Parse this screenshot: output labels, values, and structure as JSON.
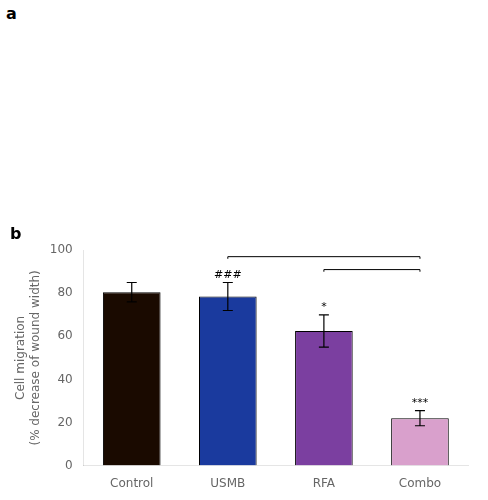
{
  "chart_data": {
    "type": "bar",
    "title": "b",
    "annotations": [
      "a"
    ],
    "categories": [
      "Control",
      "USMB",
      "RFA",
      "Combo"
    ],
    "values": [
      80.5,
      78.5,
      62.5,
      22.0
    ],
    "errors": [
      4.5,
      6.5,
      7.5,
      3.5
    ],
    "colors": [
      "#1a0a00",
      "#1a3a9e",
      "#7b3fa0",
      "#d9a0cc"
    ],
    "ylabel": "Cell migration\n(% decrease of wound width)",
    "ylim": [
      0,
      100
    ],
    "yticks": [
      0,
      20,
      40,
      60,
      80,
      100
    ],
    "significance": [
      null,
      "###",
      "*",
      "***"
    ],
    "brackets": [
      {
        "from": "USMB",
        "to": "Combo",
        "y": 96,
        "top": 97
      },
      {
        "from": "RFA",
        "to": "Combo",
        "y": 90,
        "top": 91
      }
    ],
    "grid": false
  }
}
